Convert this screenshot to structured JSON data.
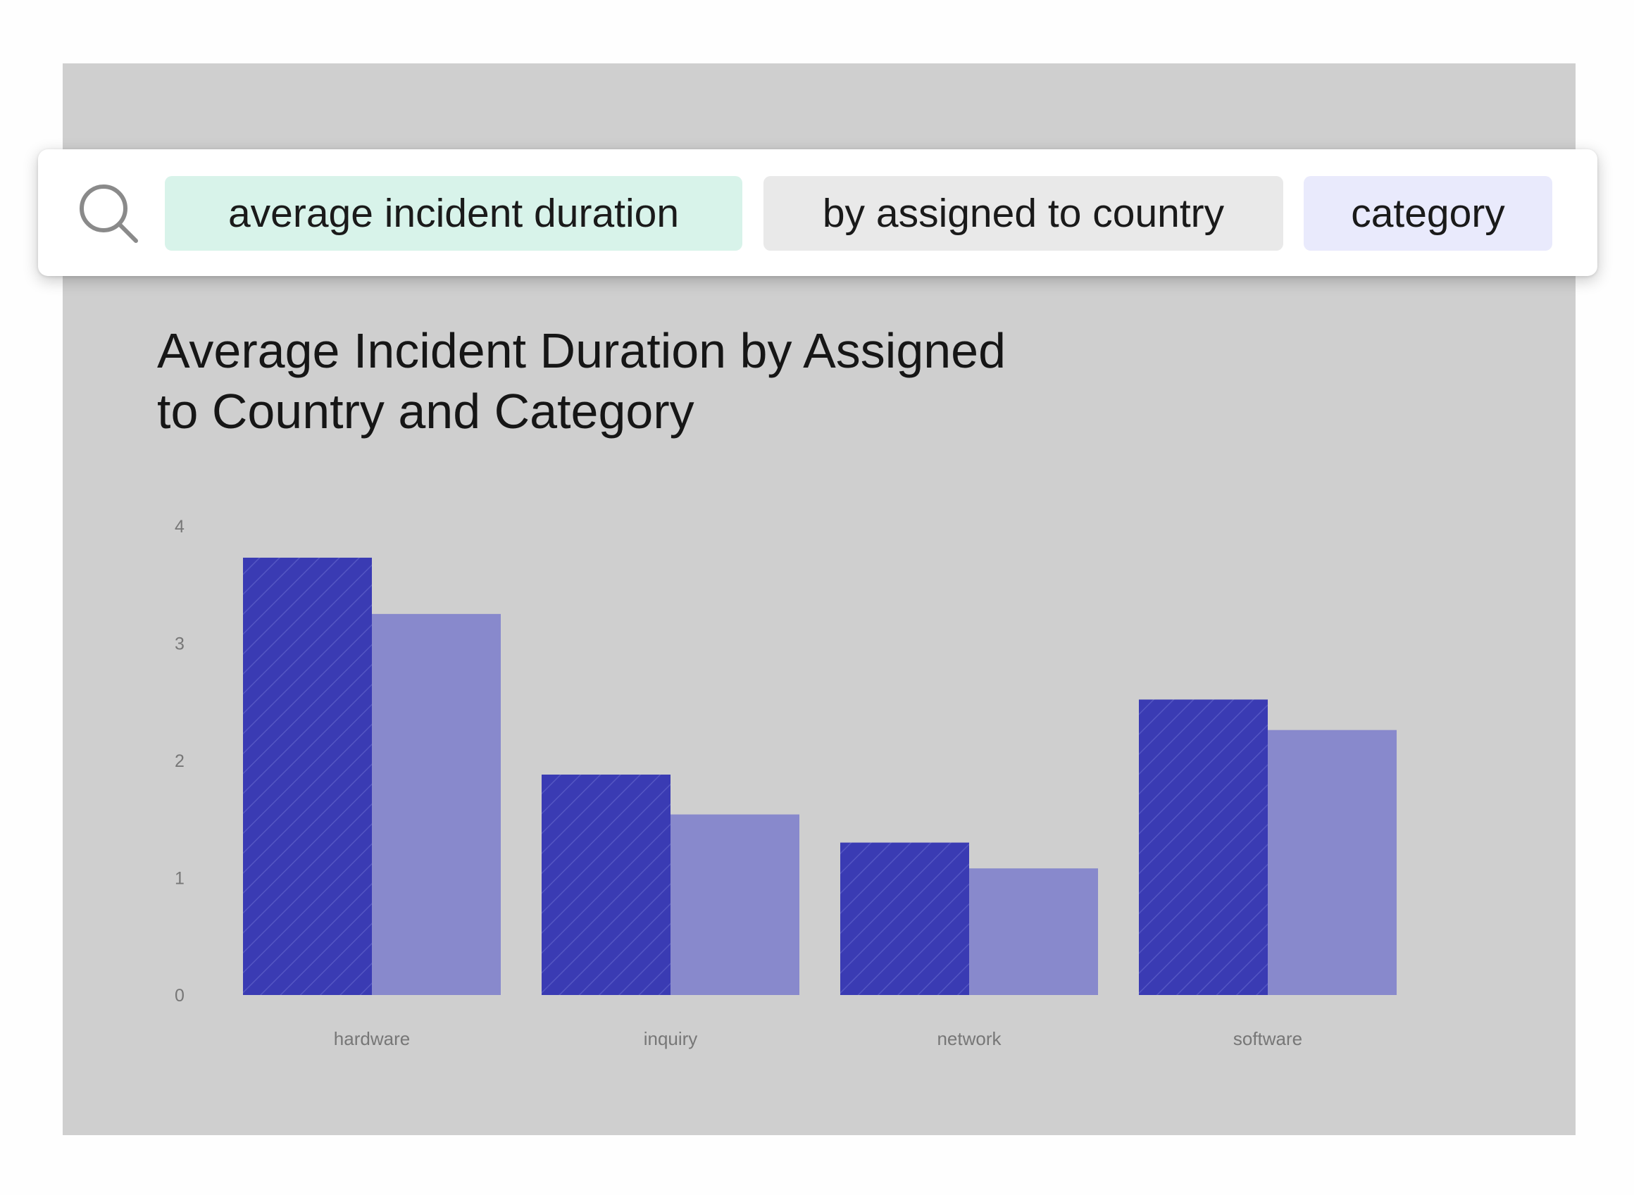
{
  "search": {
    "tokens": [
      {
        "text": "average incident duration",
        "color": "#d8f3ea"
      },
      {
        "text": "by assigned to country",
        "color": "#e9e9e9"
      },
      {
        "text": "category",
        "color": "#e9eafc"
      }
    ]
  },
  "icons": {
    "search": "search-icon"
  },
  "colors": {
    "series_dark": "#3a3bb3",
    "series_light": "#8889cc",
    "panel": "#cfcfcf",
    "axis_text": "#777777"
  },
  "chart_data": {
    "type": "bar",
    "title_line1": "Average Incident Duration by Assigned",
    "title_line2": "to Country and Category",
    "xlabel": "",
    "ylabel": "",
    "ylim": [
      0,
      4
    ],
    "yticks": [
      "0",
      "1",
      "2",
      "3",
      "4"
    ],
    "categories": [
      "hardware",
      "inquiry",
      "network",
      "software"
    ],
    "grid": false,
    "legend": "none",
    "series": [
      {
        "values": [
          3.73,
          1.88,
          1.3,
          2.52
        ],
        "pattern": "hatched"
      },
      {
        "values": [
          3.25,
          1.54,
          1.08,
          2.26
        ],
        "pattern": "solid"
      }
    ]
  }
}
